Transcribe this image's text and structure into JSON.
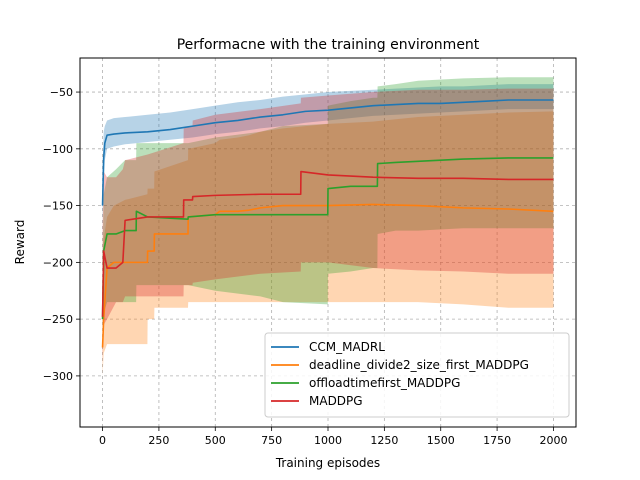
{
  "chart_data": {
    "type": "line",
    "title": "Performacne with the training environment",
    "xlabel": "Training episodes",
    "ylabel": "Reward",
    "xlim": [
      -100,
      2100
    ],
    "ylim": [
      -345,
      -20
    ],
    "xticks": [
      0,
      250,
      500,
      750,
      1000,
      1250,
      1500,
      1750,
      2000
    ],
    "xtick_labels": [
      "0",
      "250",
      "500",
      "750",
      "1000",
      "1250",
      "1500",
      "1750",
      "2000"
    ],
    "yticks": [
      -300,
      -250,
      -200,
      -150,
      -100,
      -50
    ],
    "ytick_labels": [
      "−300",
      "−250",
      "−200",
      "−150",
      "−100",
      "−50"
    ],
    "grid": true,
    "legend_position": "lower-right",
    "series": [
      {
        "name": "CCM_MADRL",
        "color": "#1f77b4",
        "x": [
          0,
          5,
          10,
          20,
          50,
          100,
          200,
          300,
          400,
          500,
          600,
          700,
          800,
          900,
          1000,
          1100,
          1200,
          1300,
          1400,
          1500,
          1600,
          1700,
          1800,
          1900,
          2000
        ],
        "y": [
          -150,
          -108,
          -95,
          -88,
          -87,
          -86,
          -85,
          -83,
          -80,
          -77,
          -75,
          -72,
          -70,
          -67,
          -66,
          -64,
          -62,
          -61,
          -60,
          -60,
          -59,
          -58,
          -57,
          -57,
          -57
        ],
        "lower": [
          -165,
          -130,
          -110,
          -100,
          -98,
          -96,
          -94,
          -92,
          -90,
          -87,
          -85,
          -82,
          -80,
          -77,
          -75,
          -73,
          -71,
          -70,
          -69,
          -68,
          -67,
          -66,
          -65,
          -65,
          -65
        ],
        "upper": [
          -120,
          -85,
          -80,
          -75,
          -73,
          -72,
          -70,
          -68,
          -65,
          -62,
          -59,
          -57,
          -54,
          -52,
          -50,
          -49,
          -48,
          -47,
          -46,
          -45,
          -45,
          -44,
          -43,
          -43,
          -43
        ]
      },
      {
        "name": "deadline_divide2_size_first_MADDPG",
        "color": "#ff7f0e",
        "x": [
          0,
          5,
          20,
          50,
          100,
          199,
          200,
          229,
          230,
          379,
          380,
          500,
          520,
          600,
          650,
          700,
          800,
          900,
          1000,
          1200,
          1400,
          1600,
          1800,
          2000
        ],
        "y": [
          -275,
          -250,
          -205,
          -200,
          -200,
          -200,
          -190,
          -190,
          -175,
          -175,
          -160,
          -158,
          -155,
          -155,
          -154,
          -152,
          -150,
          -150,
          -150,
          -149,
          -150,
          -152,
          -153,
          -155
        ],
        "lower": [
          -300,
          -280,
          -272,
          -272,
          -272,
          -272,
          -250,
          -250,
          -240,
          -240,
          -235,
          -235,
          -235,
          -235,
          -235,
          -235,
          -235,
          -235,
          -235,
          -235,
          -235,
          -237,
          -240,
          -240
        ],
        "upper": [
          -240,
          -180,
          -160,
          -150,
          -145,
          -140,
          -135,
          -135,
          -120,
          -110,
          -100,
          -95,
          -92,
          -90,
          -88,
          -85,
          -82,
          -80,
          -78,
          -76,
          -72,
          -70,
          -68,
          -67
        ]
      },
      {
        "name": "offloadtimefirst_MADDPG",
        "color": "#2ca02c",
        "x": [
          0,
          5,
          20,
          60,
          100,
          149,
          150,
          200,
          379,
          380,
          500,
          700,
          800,
          999,
          1000,
          1100,
          1200,
          1219,
          1220,
          1300,
          1400,
          1600,
          1800,
          2000
        ],
        "y": [
          -250,
          -190,
          -175,
          -175,
          -172,
          -172,
          -155,
          -160,
          -162,
          -160,
          -158,
          -158,
          -158,
          -158,
          -135,
          -133,
          -133,
          -133,
          -113,
          -112,
          -111,
          -109,
          -108,
          -108
        ],
        "lower": [
          -270,
          -245,
          -235,
          -235,
          -235,
          -235,
          -220,
          -220,
          -220,
          -220,
          -225,
          -230,
          -235,
          -237,
          -210,
          -208,
          -205,
          -205,
          -175,
          -172,
          -172,
          -170,
          -170,
          -170
        ],
        "upper": [
          -200,
          -140,
          -125,
          -118,
          -110,
          -110,
          -95,
          -95,
          -95,
          -95,
          -90,
          -85,
          -80,
          -78,
          -62,
          -58,
          -55,
          -55,
          -45,
          -43,
          -40,
          -38,
          -37,
          -37
        ]
      },
      {
        "name": "MADDPG",
        "color": "#d62728",
        "x": [
          0,
          5,
          20,
          60,
          90,
          100,
          200,
          359,
          360,
          399,
          400,
          500,
          700,
          879,
          880,
          1000,
          1200,
          1400,
          1600,
          1800,
          2000
        ],
        "y": [
          -248,
          -190,
          -205,
          -205,
          -200,
          -163,
          -160,
          -160,
          -145,
          -145,
          -142,
          -141,
          -140,
          -140,
          -120,
          -123,
          -125,
          -126,
          -126,
          -127,
          -127
        ],
        "lower": [
          -290,
          -255,
          -250,
          -235,
          -235,
          -230,
          -230,
          -230,
          -220,
          -220,
          -218,
          -215,
          -210,
          -208,
          -200,
          -200,
          -205,
          -207,
          -208,
          -210,
          -210
        ],
        "upper": [
          -170,
          -120,
          -125,
          -125,
          -118,
          -110,
          -105,
          -95,
          -82,
          -80,
          -75,
          -70,
          -65,
          -60,
          -55,
          -53,
          -50,
          -48,
          -48,
          -47,
          -47
        ]
      }
    ]
  }
}
